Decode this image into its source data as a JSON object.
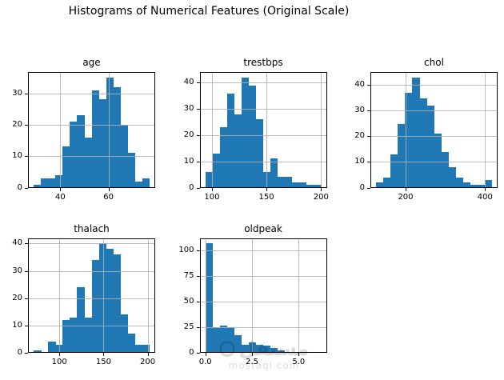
{
  "figure": {
    "title": "Histograms of Numerical Features (Original Scale)"
  },
  "watermark": {
    "brand_arabic": "مستقل",
    "brand_domain": "mostaql.com"
  },
  "colors": {
    "bar": "#1f77b4",
    "grid": "#b0b0b0",
    "text": "#000000",
    "spine": "#000000"
  },
  "chart_data": [
    {
      "type": "histogram",
      "title": "age",
      "bin_start": 29,
      "bin_width": 3,
      "counts": [
        1,
        3,
        3,
        4,
        13,
        21,
        23,
        16,
        31,
        28,
        35,
        32,
        20,
        11,
        2,
        3
      ],
      "xlim": [
        26.6,
        79.4
      ],
      "ylim": [
        0,
        36.75
      ],
      "xticks": [
        40,
        60
      ],
      "xtick_labels": [
        "40",
        "60"
      ],
      "yticks": [
        0,
        10,
        20,
        30
      ],
      "ytick_labels": [
        "0",
        "10",
        "20",
        "30"
      ],
      "grid": true
    },
    {
      "type": "histogram",
      "title": "trestbps",
      "bin_start": 94,
      "bin_width": 6.625,
      "counts": [
        6,
        13,
        23,
        36,
        28,
        42,
        39,
        26,
        6,
        11,
        4,
        4,
        2,
        2,
        1,
        1
      ],
      "xlim": [
        88.7,
        205.3
      ],
      "ylim": [
        0,
        44.1
      ],
      "xticks": [
        100,
        150,
        200
      ],
      "xtick_labels": [
        "100",
        "150",
        "200"
      ],
      "yticks": [
        0,
        10,
        20,
        30,
        40
      ],
      "ytick_labels": [
        "0",
        "10",
        "20",
        "30",
        "40"
      ],
      "grid": true
    },
    {
      "type": "histogram",
      "title": "chol",
      "bin_start": 126,
      "bin_width": 18.1875,
      "counts": [
        2,
        4,
        13,
        25,
        37,
        43,
        35,
        32,
        21,
        14,
        8,
        4,
        2,
        1,
        1,
        3
      ],
      "xlim": [
        111.45,
        431.55
      ],
      "ylim": [
        0,
        45.15
      ],
      "xticks": [
        200,
        400
      ],
      "xtick_labels": [
        "200",
        "400"
      ],
      "yticks": [
        0,
        10,
        20,
        30,
        40
      ],
      "ytick_labels": [
        "0",
        "10",
        "20",
        "30",
        "40"
      ],
      "grid": true
    },
    {
      "type": "histogram",
      "title": "thalach",
      "bin_start": 71,
      "bin_width": 8.1875,
      "counts": [
        1,
        0,
        4,
        3,
        12,
        13,
        24,
        13,
        34,
        40,
        38,
        36,
        14,
        7,
        3,
        3
      ],
      "xlim": [
        64.45,
        208.55
      ],
      "ylim": [
        0,
        42
      ],
      "xticks": [
        100,
        150,
        200
      ],
      "xtick_labels": [
        "100",
        "150",
        "200"
      ],
      "yticks": [
        0,
        10,
        20,
        30,
        40
      ],
      "ytick_labels": [
        "0",
        "10",
        "20",
        "30",
        "40"
      ],
      "grid": true
    },
    {
      "type": "histogram",
      "title": "oldpeak",
      "bin_start": 0,
      "bin_width": 0.3875,
      "counts": [
        107,
        25,
        27,
        25,
        17,
        8,
        10,
        8,
        7,
        5,
        2,
        1,
        0,
        0,
        1,
        1
      ],
      "xlim": [
        -0.31,
        6.51
      ],
      "ylim": [
        0,
        112.35
      ],
      "xticks": [
        0.0,
        2.5,
        5.0
      ],
      "xtick_labels": [
        "0.0",
        "2.5",
        "5.0"
      ],
      "yticks": [
        0,
        25,
        50,
        75,
        100
      ],
      "ytick_labels": [
        "0",
        "25",
        "50",
        "75",
        "100"
      ],
      "grid": true
    }
  ]
}
